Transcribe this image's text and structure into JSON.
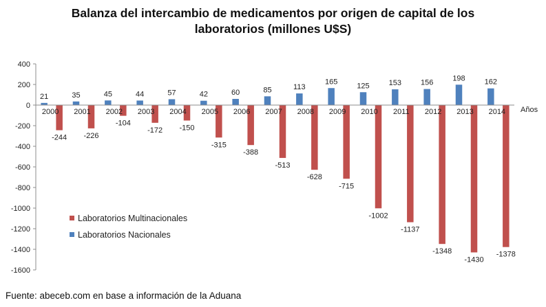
{
  "chart_data": {
    "type": "bar",
    "title_lines": [
      "Balanza del intercambio de medicamentos por origen de capital de los",
      "laboratorios (millones U$S)"
    ],
    "xlabel": "Años",
    "ylabel": "",
    "ylim": [
      -1600,
      400
    ],
    "yticks": [
      400,
      200,
      0,
      -200,
      -400,
      -600,
      -800,
      -1000,
      -1200,
      -1400,
      -1600
    ],
    "categories": [
      "2000",
      "2001",
      "2002",
      "2003",
      "2004",
      "2005",
      "2006",
      "2007",
      "2008",
      "2009",
      "2010",
      "2011",
      "2012",
      "2013",
      "2014"
    ],
    "series": [
      {
        "name": "Laboratorios Nacionales",
        "color": "#4F81BD",
        "values": [
          21,
          35,
          45,
          44,
          57,
          42,
          60,
          85,
          113,
          165,
          125,
          153,
          156,
          198,
          162
        ]
      },
      {
        "name": "Laboratorios Multinacionales",
        "color": "#C0504D",
        "values": [
          -244,
          -226,
          -104,
          -172,
          -150,
          -315,
          -388,
          -513,
          -628,
          -715,
          -1002,
          -1137,
          -1348,
          -1430,
          -1378
        ]
      }
    ],
    "legend_order": [
      "Laboratorios Multinacionales",
      "Laboratorios Nacionales"
    ],
    "legend_position": "bottom-left",
    "grid": false
  },
  "source": "Fuente: abeceb.com en base a información de la Aduana"
}
